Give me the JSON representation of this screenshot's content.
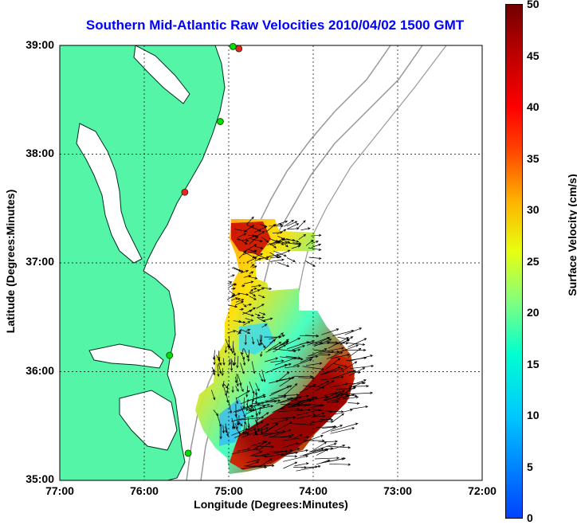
{
  "title": "Southern Mid-Atlantic Raw Velocities 2010/04/02 1500 GMT",
  "axes": {
    "xlabel": "Longitude (Degrees:Minutes)",
    "ylabel": "Latitude (Degrees:Minutes)",
    "xticks": [
      "77:00",
      "76:00",
      "75:00",
      "74:00",
      "73:00",
      "72:00"
    ],
    "yticks": [
      "39:00",
      "38:00",
      "37:00",
      "36:00",
      "35:00"
    ]
  },
  "colorbar": {
    "label": "Surface Velocity (cm/s)",
    "ticks": [
      "50",
      "45",
      "40",
      "35",
      "30",
      "25",
      "20",
      "15",
      "10",
      "5",
      "0"
    ],
    "range": [
      0,
      50
    ]
  },
  "colors": {
    "land": "#55f5a8",
    "bathymetry": "#999999",
    "title": "#0000ff",
    "station_green": "#00dd00",
    "station_red": "#ee2222"
  },
  "map_data": {
    "lon_range": [
      -77,
      -72
    ],
    "lat_range": [
      35,
      39
    ],
    "grid": true,
    "stations": [
      {
        "lon": -74.88,
        "lat": 38.97,
        "type": "red"
      },
      {
        "lon": -74.95,
        "lat": 38.99,
        "type": "green"
      },
      {
        "lon": -75.1,
        "lat": 38.3,
        "type": "green"
      },
      {
        "lon": -75.52,
        "lat": 37.65,
        "type": "red"
      },
      {
        "lon": -75.7,
        "lat": 36.15,
        "type": "green"
      },
      {
        "lon": -75.48,
        "lat": 35.25,
        "type": "green"
      }
    ]
  }
}
